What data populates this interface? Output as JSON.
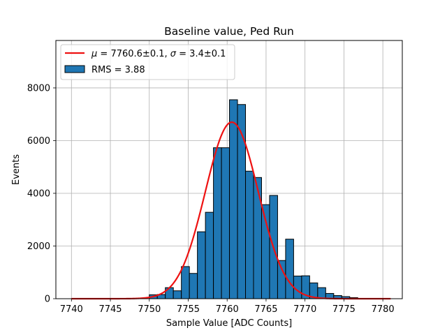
{
  "chart_data": {
    "type": "bar",
    "title": "Baseline value, Ped Run",
    "xlabel": "Sample Value [ADC Counts]",
    "ylabel": "Events",
    "xlim": [
      7738,
      7782.5
    ],
    "ylim": [
      0,
      9800
    ],
    "xticks": [
      7740,
      7745,
      7750,
      7755,
      7760,
      7765,
      7770,
      7775,
      7780
    ],
    "yticks": [
      0,
      2000,
      4000,
      6000,
      8000
    ],
    "grid": true,
    "legend_placement": "top-left",
    "bin_width": 1.03,
    "bars": [
      {
        "x": 7750.0,
        "value": 150
      },
      {
        "x": 7751.03,
        "value": 160
      },
      {
        "x": 7752.06,
        "value": 420
      },
      {
        "x": 7753.09,
        "value": 300
      },
      {
        "x": 7754.12,
        "value": 1220
      },
      {
        "x": 7755.15,
        "value": 960
      },
      {
        "x": 7756.18,
        "value": 2540
      },
      {
        "x": 7757.21,
        "value": 3280
      },
      {
        "x": 7758.24,
        "value": 5730
      },
      {
        "x": 7759.27,
        "value": 5730
      },
      {
        "x": 7760.3,
        "value": 7550
      },
      {
        "x": 7761.33,
        "value": 7370
      },
      {
        "x": 7762.36,
        "value": 4840
      },
      {
        "x": 7763.39,
        "value": 4600
      },
      {
        "x": 7764.42,
        "value": 3570
      },
      {
        "x": 7765.45,
        "value": 3920
      },
      {
        "x": 7766.48,
        "value": 1450
      },
      {
        "x": 7767.51,
        "value": 2260
      },
      {
        "x": 7768.54,
        "value": 860
      },
      {
        "x": 7769.57,
        "value": 870
      },
      {
        "x": 7770.6,
        "value": 600
      },
      {
        "x": 7771.63,
        "value": 420
      },
      {
        "x": 7772.66,
        "value": 200
      },
      {
        "x": 7773.69,
        "value": 120
      },
      {
        "x": 7774.72,
        "value": 80
      },
      {
        "x": 7775.75,
        "value": 40
      }
    ],
    "fit": {
      "mu": 7760.6,
      "sigma": 3.4,
      "amplitude": 6700,
      "x_range": [
        7740,
        7781
      ]
    },
    "series": [
      {
        "name": "fit",
        "label_prefix": "μ = ",
        "mu_text": "7760.6±0.1",
        "sep": ", ",
        "sigma_prefix": "σ = ",
        "sigma_text": "3.4±0.1",
        "color": "#ee1111"
      },
      {
        "name": "RMS = 3.88",
        "color": "#1f77b4"
      }
    ]
  }
}
